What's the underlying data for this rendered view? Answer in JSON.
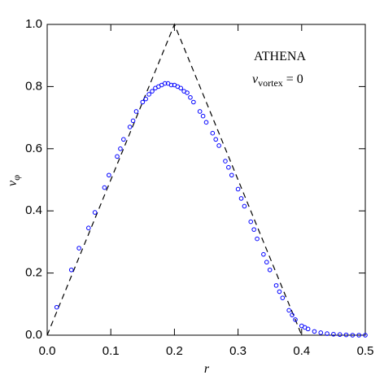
{
  "chart_data": {
    "type": "scatter",
    "annotations": {
      "code": "ATHENA",
      "param_symbol": "v",
      "param_subscript": "vortex",
      "param_value": "= 0"
    },
    "xlabel": "r",
    "ylabel": {
      "symbol": "v",
      "subscript": "φ"
    },
    "xlim": [
      0,
      0.5
    ],
    "ylim": [
      0,
      1
    ],
    "xticks": [
      {
        "value": 0,
        "label": "0.0"
      },
      {
        "value": 0.1,
        "label": "0.1"
      },
      {
        "value": 0.2,
        "label": "0.2"
      },
      {
        "value": 0.3,
        "label": "0.3"
      },
      {
        "value": 0.4,
        "label": "0.4"
      },
      {
        "value": 0.5,
        "label": "0.5"
      }
    ],
    "yticks": [
      {
        "value": 0,
        "label": "0.0"
      },
      {
        "value": 0.2,
        "label": "0.2"
      },
      {
        "value": 0.4,
        "label": "0.4"
      },
      {
        "value": 0.6,
        "label": "0.6"
      },
      {
        "value": 0.8,
        "label": "0.8"
      },
      {
        "value": 1,
        "label": "1.0"
      }
    ],
    "series": [
      {
        "color": "#0000ff",
        "marker": "open-circle",
        "x": [
          0.015,
          0.038,
          0.05,
          0.065,
          0.075,
          0.09,
          0.097,
          0.11,
          0.115,
          0.12,
          0.13,
          0.135,
          0.14,
          0.15,
          0.155,
          0.16,
          0.165,
          0.17,
          0.175,
          0.18,
          0.185,
          0.19,
          0.195,
          0.2,
          0.205,
          0.21,
          0.215,
          0.22,
          0.225,
          0.23,
          0.24,
          0.245,
          0.25,
          0.26,
          0.265,
          0.27,
          0.28,
          0.285,
          0.29,
          0.3,
          0.305,
          0.31,
          0.32,
          0.325,
          0.33,
          0.34,
          0.345,
          0.35,
          0.36,
          0.365,
          0.37,
          0.38,
          0.385,
          0.39,
          0.4,
          0.405,
          0.41,
          0.42,
          0.43,
          0.44,
          0.45,
          0.46,
          0.47,
          0.48,
          0.49,
          0.5
        ],
        "values": [
          0.09,
          0.21,
          0.28,
          0.345,
          0.395,
          0.475,
          0.515,
          0.575,
          0.6,
          0.63,
          0.67,
          0.69,
          0.72,
          0.75,
          0.76,
          0.775,
          0.785,
          0.795,
          0.8,
          0.805,
          0.81,
          0.81,
          0.805,
          0.805,
          0.8,
          0.795,
          0.785,
          0.78,
          0.765,
          0.75,
          0.72,
          0.705,
          0.685,
          0.65,
          0.63,
          0.61,
          0.56,
          0.54,
          0.515,
          0.47,
          0.44,
          0.415,
          0.365,
          0.34,
          0.31,
          0.26,
          0.235,
          0.21,
          0.16,
          0.14,
          0.12,
          0.08,
          0.065,
          0.05,
          0.03,
          0.025,
          0.02,
          0.012,
          0.008,
          0.005,
          0.003,
          0.002,
          0.001,
          0,
          0,
          0
        ]
      }
    ],
    "reference_line": {
      "color": "#000000",
      "dashed": true,
      "x": [
        0,
        0.2,
        0.4
      ],
      "values": [
        0,
        1,
        0
      ]
    }
  }
}
